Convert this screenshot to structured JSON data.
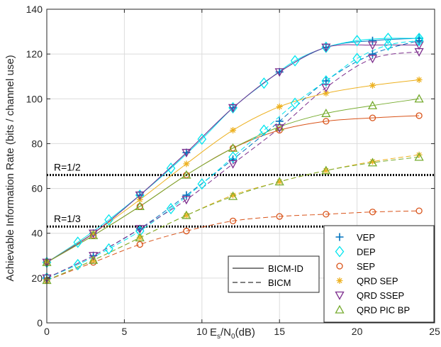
{
  "chart_data": {
    "type": "line",
    "xlabel_main": "E",
    "xlabel_sub1": "s",
    "xlabel_mid": "/N",
    "xlabel_sub2": "0",
    "xlabel_tail": "(dB)",
    "ylabel": "Achievable Information Rate (bits / channel use)",
    "xlim": [
      0,
      25
    ],
    "ylim": [
      0,
      140
    ],
    "xticks": [
      0,
      5,
      10,
      15,
      20,
      25
    ],
    "yticks": [
      0,
      20,
      40,
      60,
      80,
      100,
      120,
      140
    ],
    "grid": true,
    "annotations": [
      {
        "text": "R=1/2",
        "y": 66
      },
      {
        "text": "R=1/3",
        "y": 43
      }
    ],
    "legend_markers": {
      "position": "bottom-right",
      "entries": [
        {
          "label": "VEP",
          "marker": "plus",
          "color": "#0072BD"
        },
        {
          "label": "DEP",
          "marker": "diamond",
          "color": "#00E5EE"
        },
        {
          "label": "SEP",
          "marker": "circle",
          "color": "#D95319"
        },
        {
          "label": "QRD SEP",
          "marker": "star",
          "color": "#EDB120"
        },
        {
          "label": "QRD SSEP",
          "marker": "triangle-down",
          "color": "#7E2F8E"
        },
        {
          "label": "QRD PIC BP",
          "marker": "triangle-up",
          "color": "#77AC30"
        }
      ]
    },
    "legend_lines": {
      "position": "bottom-center-right",
      "entries": [
        {
          "label": "BICM-ID",
          "style": "solid"
        },
        {
          "label": "BICM",
          "style": "dashed"
        }
      ]
    },
    "series": [
      {
        "name": "VEP",
        "color": "#0072BD",
        "marker": "plus",
        "style": "solid",
        "x": [
          0,
          3,
          6,
          9,
          12,
          15,
          18,
          21,
          24
        ],
        "y": [
          27,
          40,
          57,
          76,
          96,
          112,
          123,
          126,
          127
        ]
      },
      {
        "name": "DEP",
        "color": "#00E5EE",
        "marker": "diamond",
        "style": "solid",
        "x": [
          0,
          2,
          4,
          6,
          8,
          10,
          12,
          14,
          16,
          18,
          20,
          22,
          24
        ],
        "y": [
          27,
          36,
          46,
          57,
          69,
          82,
          96,
          107,
          117,
          123,
          126,
          127,
          127
        ]
      },
      {
        "name": "SEP",
        "color": "#D95319",
        "marker": "circle",
        "style": "solid",
        "x": [
          0,
          3,
          6,
          9,
          12,
          15,
          18,
          21,
          24
        ],
        "y": [
          27,
          39,
          52,
          66,
          78,
          86,
          90,
          91.5,
          92.5
        ]
      },
      {
        "name": "QRD SEP",
        "color": "#EDB120",
        "marker": "star",
        "style": "solid",
        "x": [
          0,
          3,
          6,
          9,
          12,
          15,
          18,
          21,
          24
        ],
        "y": [
          27,
          40,
          55,
          71,
          86,
          96.5,
          102.5,
          106,
          108.5
        ]
      },
      {
        "name": "QRD SSEP",
        "color": "#7E2F8E",
        "marker": "triangle-down",
        "style": "solid",
        "x": [
          0,
          3,
          6,
          9,
          12,
          15,
          18,
          21,
          24
        ],
        "y": [
          27,
          40,
          57,
          76,
          96,
          112,
          123,
          124,
          124
        ]
      },
      {
        "name": "QRD PIC BP",
        "color": "#77AC30",
        "marker": "triangle-up",
        "style": "solid",
        "x": [
          0,
          3,
          6,
          9,
          12,
          15,
          18,
          21,
          24
        ],
        "y": [
          27,
          39,
          52,
          66,
          78,
          87.5,
          93.5,
          97,
          100
        ]
      },
      {
        "name": "VEP",
        "color": "#0072BD",
        "marker": "plus",
        "style": "dashed",
        "x": [
          0,
          3,
          6,
          9,
          12,
          15,
          18,
          21,
          24
        ],
        "y": [
          20,
          30,
          42,
          57,
          73,
          90,
          108,
          120,
          126
        ]
      },
      {
        "name": "DEP",
        "color": "#00E5EE",
        "marker": "diamond",
        "style": "dashed",
        "x": [
          0,
          2,
          4,
          6,
          8,
          10,
          12,
          14,
          16,
          18,
          20,
          22,
          24
        ],
        "y": [
          20,
          26,
          33,
          41,
          51,
          62,
          74,
          86,
          98,
          108,
          118,
          124,
          126
        ]
      },
      {
        "name": "SEP",
        "color": "#D95319",
        "marker": "circle",
        "style": "dashed",
        "x": [
          0,
          3,
          6,
          9,
          12,
          15,
          18,
          21,
          24
        ],
        "y": [
          19,
          27,
          35,
          41,
          45.5,
          47.5,
          48.5,
          49.5,
          50
        ]
      },
      {
        "name": "QRD SEP",
        "color": "#EDB120",
        "marker": "star",
        "style": "dashed",
        "x": [
          0,
          3,
          6,
          9,
          12,
          15,
          18,
          21,
          24
        ],
        "y": [
          19,
          28,
          38,
          48,
          57,
          63,
          68,
          72,
          75
        ]
      },
      {
        "name": "QRD SSEP",
        "color": "#7E2F8E",
        "marker": "triangle-down",
        "style": "dashed",
        "x": [
          0,
          3,
          6,
          9,
          12,
          15,
          18,
          21,
          24
        ],
        "y": [
          20,
          30,
          42,
          55,
          71,
          87,
          105,
          118,
          121
        ]
      },
      {
        "name": "QRD PIC BP",
        "color": "#77AC30",
        "marker": "triangle-up",
        "style": "dashed",
        "x": [
          0,
          3,
          6,
          9,
          12,
          15,
          18,
          21,
          24
        ],
        "y": [
          19,
          28,
          38,
          48,
          56.5,
          63,
          68,
          71.5,
          74
        ]
      }
    ]
  }
}
